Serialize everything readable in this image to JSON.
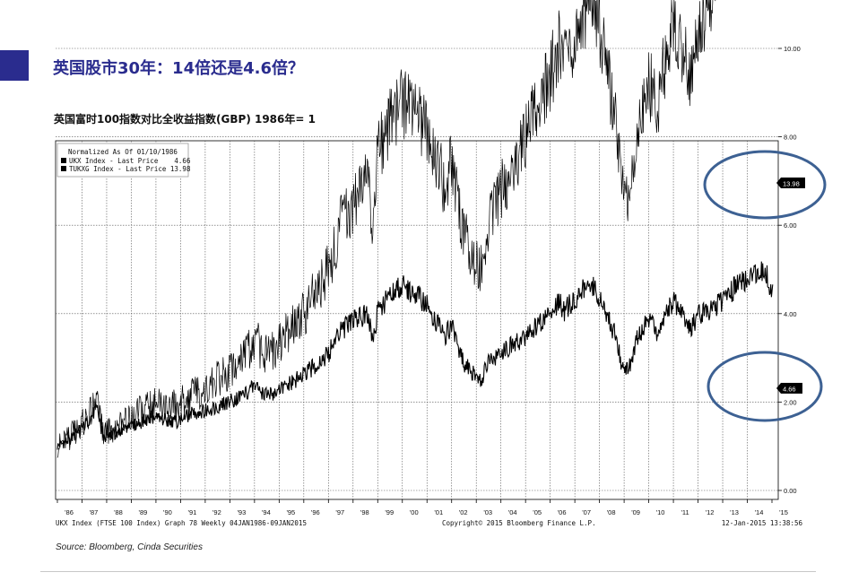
{
  "slide": {
    "title": "英国股市30年：14倍还是4.6倍？",
    "source": "Source: Bloomberg, Cinda Securities"
  },
  "chart_data": {
    "type": "line",
    "title": "英国富时100指数对比全收益指数(GBP) 1986年= 1",
    "legend": {
      "header": "Normalized As Of 01/10/1986",
      "position": "top-left",
      "entries": [
        "UKX Index - Last Price    4.66",
        "TUKXG Index - Last Price 13.98"
      ]
    },
    "x_tick_labels": [
      "'86",
      "'87",
      "'88",
      "'89",
      "'90",
      "'91",
      "'92",
      "'93",
      "'94",
      "'95",
      "'96",
      "'97",
      "'98",
      "'99",
      "'00",
      "'01",
      "'02",
      "'03",
      "'04",
      "'05",
      "'06",
      "'07",
      "'08",
      "'09",
      "'10",
      "'11",
      "'12",
      "'13",
      "'14",
      "'15"
    ],
    "y_tick_labels": [
      "0.00",
      "2.00",
      "4.00",
      "6.00",
      "8.00",
      "10.00",
      "12.00"
    ],
    "ylim": [
      0,
      16
    ],
    "xlim": [
      1986.0,
      2015.1
    ],
    "grid": true,
    "y_axis_side": "right",
    "series": [
      {
        "name": "UKX Index - Last Price",
        "last_label": "4.66",
        "x": [
          1986.0,
          1986.5,
          1987.0,
          1987.6,
          1987.85,
          1988.5,
          1989.0,
          1989.8,
          1990.8,
          1991.5,
          1992.0,
          1992.7,
          1993.5,
          1994.0,
          1994.5,
          1995.0,
          1996.0,
          1997.0,
          1997.5,
          1998.0,
          1998.6,
          1998.8,
          1999.0,
          1999.5,
          1999.95,
          2000.5,
          2001.0,
          2001.7,
          2002.0,
          2002.5,
          2002.8,
          2003.2,
          2003.5,
          2004.0,
          2005.0,
          2006.0,
          2006.4,
          2006.5,
          2007.0,
          2007.4,
          2007.8,
          2008.3,
          2008.7,
          2008.9,
          2009.2,
          2009.5,
          2010.0,
          2010.4,
          2010.6,
          2011.0,
          2011.3,
          2011.7,
          2012.0,
          2012.5,
          2013.0,
          2013.5,
          2014.0,
          2014.5,
          2014.8,
          2014.9,
          2015.03
        ],
        "values": [
          1.0,
          1.15,
          1.4,
          1.85,
          1.2,
          1.3,
          1.45,
          1.65,
          1.55,
          1.75,
          1.8,
          1.95,
          2.15,
          2.35,
          2.15,
          2.25,
          2.6,
          3.1,
          3.6,
          3.85,
          4.0,
          3.35,
          4.05,
          4.4,
          4.65,
          4.45,
          4.2,
          3.5,
          3.7,
          2.9,
          2.65,
          2.5,
          2.9,
          3.15,
          3.45,
          4.0,
          4.3,
          4.0,
          4.35,
          4.6,
          4.6,
          3.9,
          3.5,
          2.85,
          2.8,
          3.4,
          3.9,
          3.55,
          3.9,
          4.25,
          4.1,
          3.6,
          4.0,
          4.1,
          4.25,
          4.6,
          4.8,
          4.95,
          4.85,
          4.5,
          4.66
        ]
      },
      {
        "name": "TUKXG Index - Last Price",
        "last_label": "13.98",
        "x": [
          1986.0,
          1986.5,
          1987.0,
          1987.6,
          1987.85,
          1988.5,
          1989.0,
          1989.8,
          1990.8,
          1991.5,
          1992.0,
          1992.7,
          1993.5,
          1994.0,
          1994.5,
          1995.0,
          1996.0,
          1997.0,
          1997.5,
          1998.0,
          1998.6,
          1998.8,
          1999.0,
          1999.5,
          1999.95,
          2000.5,
          2001.0,
          2001.7,
          2002.0,
          2002.5,
          2002.8,
          2003.2,
          2003.5,
          2004.0,
          2005.0,
          2006.0,
          2006.4,
          2006.5,
          2007.0,
          2007.4,
          2007.8,
          2008.3,
          2008.7,
          2008.9,
          2009.2,
          2009.5,
          2010.0,
          2010.4,
          2010.6,
          2011.0,
          2011.3,
          2011.7,
          2012.0,
          2012.5,
          2013.0,
          2013.5,
          2014.0,
          2014.5,
          2014.8,
          2014.9,
          2015.03
        ],
        "values": [
          1.0,
          1.2,
          1.5,
          1.95,
          1.3,
          1.45,
          1.65,
          1.95,
          1.9,
          2.15,
          2.3,
          2.6,
          3.0,
          3.4,
          3.05,
          3.3,
          4.0,
          5.0,
          6.0,
          6.5,
          7.2,
          6.0,
          7.6,
          8.3,
          8.8,
          8.5,
          8.2,
          6.9,
          7.4,
          5.8,
          5.4,
          5.0,
          6.0,
          6.8,
          8.0,
          9.4,
          10.1,
          9.5,
          10.3,
          10.8,
          11.0,
          9.5,
          8.4,
          6.8,
          6.3,
          7.8,
          9.2,
          8.7,
          9.6,
          10.5,
          10.2,
          9.1,
          10.4,
          11.2,
          12.3,
          13.2,
          14.0,
          14.6,
          14.3,
          13.4,
          13.98
        ]
      }
    ],
    "footer_left": "UKX Index (FTSE 100 Index) Graph 78  Weekly 04JAN1986-09JAN2015",
    "footer_center": "Copyright© 2015 Bloomberg Finance L.P.",
    "footer_right": "12-Jan-2015 13:38:56",
    "annotations": [
      "highlight-ellipse-total-return-end",
      "highlight-ellipse-price-end"
    ]
  },
  "colors": {
    "accent": "#2a2c8e",
    "ellipse": "#3d6193",
    "grid": "#555555",
    "line": "#000000"
  }
}
